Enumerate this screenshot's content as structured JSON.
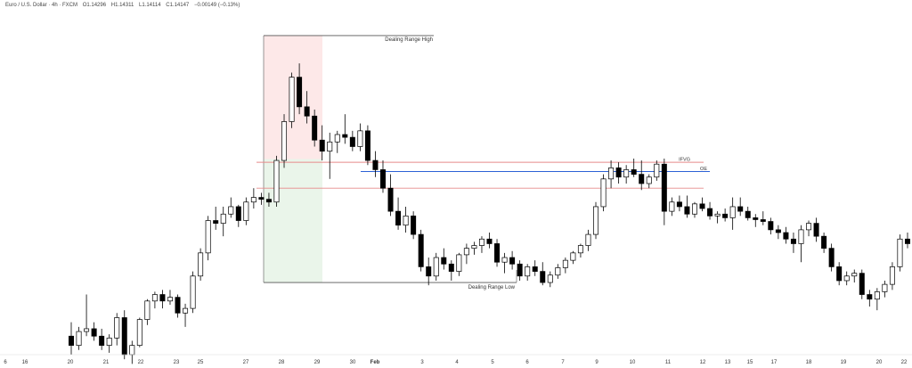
{
  "header": {
    "symbol": "Euro / U.S. Dollar · 4h · FXCM",
    "open": "O1.14296",
    "high": "H1.14311",
    "low": "L1.14114",
    "close": "C1.14147",
    "change": "−0.00149 (−0.13%)"
  },
  "colors": {
    "candle_up": "#ffffff",
    "candle_down": "#000000",
    "wick": "#000000",
    "premium_zone": "#fde8e8",
    "discount_zone": "#eaf5ea",
    "fvg_line": "#e88a8a",
    "ote_line": "#2d62d6"
  },
  "annotations": {
    "range_high": "Dealing Range High",
    "range_low": "Dealing Range Low",
    "fvg": "IFVG",
    "ote": "OE"
  },
  "chart_data": {
    "type": "candlestick",
    "x_tick_labels": [
      "6",
      "16",
      "20",
      "21",
      "22",
      "23",
      "24",
      "25",
      "27",
      "28",
      "29",
      "30",
      "Feb",
      "3",
      "4",
      "5",
      "6",
      "7",
      "9",
      "10",
      "11",
      "12",
      "13",
      "15",
      "16",
      "17",
      "18",
      "19",
      "20",
      "22"
    ],
    "bold_tick_labels": [
      "Feb"
    ],
    "ylim": [
      1.062,
      1.099
    ],
    "levels": {
      "dealing_range_high": 1.0965,
      "dealing_range_low": 1.0698,
      "ifvg_upper": 1.0828,
      "ote": 1.0818,
      "ifvg_lower": 1.08
    },
    "candles": [
      [
        1.064,
        1.0655,
        1.062,
        1.063
      ],
      [
        1.063,
        1.065,
        1.0625,
        1.0645
      ],
      [
        1.0645,
        1.0685,
        1.064,
        1.0648
      ],
      [
        1.0648,
        1.0655,
        1.0635,
        1.064
      ],
      [
        1.064,
        1.0648,
        1.0625,
        1.063
      ],
      [
        1.063,
        1.0642,
        1.0622,
        1.0638
      ],
      [
        1.0638,
        1.0665,
        1.063,
        1.066
      ],
      [
        1.066,
        1.0668,
        1.0615,
        1.062
      ],
      [
        1.062,
        1.0635,
        1.061,
        1.063
      ],
      [
        1.063,
        1.066,
        1.0628,
        1.0658
      ],
      [
        1.0658,
        1.068,
        1.0652,
        1.0678
      ],
      [
        1.0678,
        1.0688,
        1.067,
        1.0685
      ],
      [
        1.0685,
        1.069,
        1.067,
        1.0678
      ],
      [
        1.0678,
        1.069,
        1.0674,
        1.0682
      ],
      [
        1.0682,
        1.0685,
        1.066,
        1.0665
      ],
      [
        1.0665,
        1.0675,
        1.065,
        1.067
      ],
      [
        1.067,
        1.071,
        1.0665,
        1.0705
      ],
      [
        1.0705,
        1.0735,
        1.07,
        1.073
      ],
      [
        1.073,
        1.077,
        1.0722,
        1.0765
      ],
      [
        1.0765,
        1.078,
        1.0755,
        1.0762
      ],
      [
        1.0762,
        1.078,
        1.0748,
        1.0772
      ],
      [
        1.0772,
        1.079,
        1.0768,
        1.078
      ],
      [
        1.078,
        1.0782,
        1.0758,
        1.0765
      ],
      [
        1.0765,
        1.079,
        1.076,
        1.0785
      ],
      [
        1.0785,
        1.08,
        1.0778,
        1.079
      ],
      [
        1.079,
        1.0795,
        1.0782,
        1.0788
      ],
      [
        1.0788,
        1.0795,
        1.078,
        1.0785
      ],
      [
        1.0785,
        1.0835,
        1.078,
        1.083
      ],
      [
        1.083,
        1.088,
        1.0822,
        1.0872
      ],
      [
        1.0872,
        1.0925,
        1.0865,
        1.092
      ],
      [
        1.092,
        1.0935,
        1.088,
        1.0888
      ],
      [
        1.0888,
        1.0905,
        1.087,
        1.0878
      ],
      [
        1.0878,
        1.0885,
        1.0845,
        1.0852
      ],
      [
        1.0852,
        1.0868,
        1.083,
        1.084
      ],
      [
        1.084,
        1.086,
        1.081,
        1.085
      ],
      [
        1.085,
        1.0862,
        1.0838,
        1.0858
      ],
      [
        1.0858,
        1.088,
        1.0848,
        1.0855
      ],
      [
        1.0855,
        1.0862,
        1.084,
        1.0845
      ],
      [
        1.0845,
        1.087,
        1.084,
        1.0862
      ],
      [
        1.0862,
        1.0868,
        1.0825,
        1.083
      ],
      [
        1.083,
        1.084,
        1.0812,
        1.082
      ],
      [
        1.082,
        1.083,
        1.0795,
        1.08
      ],
      [
        1.08,
        1.0815,
        1.077,
        1.0775
      ],
      [
        1.0775,
        1.079,
        1.0755,
        1.076
      ],
      [
        1.076,
        1.078,
        1.0752,
        1.077
      ],
      [
        1.077,
        1.0775,
        1.0745,
        1.075
      ],
      [
        1.075,
        1.0755,
        1.071,
        1.0715
      ],
      [
        1.0715,
        1.0725,
        1.0695,
        1.0705
      ],
      [
        1.0705,
        1.073,
        1.07,
        1.0725
      ],
      [
        1.0725,
        1.0735,
        1.0712,
        1.0718
      ],
      [
        1.0718,
        1.0722,
        1.07,
        1.071
      ],
      [
        1.071,
        1.073,
        1.0705,
        1.0728
      ],
      [
        1.0728,
        1.074,
        1.0718,
        1.0735
      ],
      [
        1.0735,
        1.0742,
        1.0728,
        1.0738
      ],
      [
        1.0738,
        1.0748,
        1.073,
        1.0745
      ],
      [
        1.0745,
        1.0752,
        1.0735,
        1.074
      ],
      [
        1.074,
        1.0745,
        1.0715,
        1.072
      ],
      [
        1.072,
        1.073,
        1.0708,
        1.0725
      ],
      [
        1.0725,
        1.0732,
        1.0712,
        1.0718
      ],
      [
        1.0718,
        1.0722,
        1.07,
        1.0705
      ],
      [
        1.0705,
        1.0718,
        1.07,
        1.0715
      ],
      [
        1.0715,
        1.0722,
        1.0705,
        1.071
      ],
      [
        1.071,
        1.072,
        1.0695,
        1.0698
      ],
      [
        1.0698,
        1.071,
        1.0693,
        1.0706
      ],
      [
        1.0706,
        1.0718,
        1.0702,
        1.0714
      ],
      [
        1.0714,
        1.0725,
        1.0708,
        1.0722
      ],
      [
        1.0722,
        1.0732,
        1.0718,
        1.073
      ],
      [
        1.073,
        1.074,
        1.0725,
        1.0738
      ],
      [
        1.0738,
        1.0755,
        1.0732,
        1.075
      ],
      [
        1.075,
        1.0785,
        1.0745,
        1.078
      ],
      [
        1.078,
        1.0815,
        1.0775,
        1.081
      ],
      [
        1.081,
        1.083,
        1.08,
        1.0822
      ],
      [
        1.0822,
        1.0828,
        1.0805,
        1.0812
      ],
      [
        1.0812,
        1.0825,
        1.0805,
        1.082
      ],
      [
        1.082,
        1.0832,
        1.0812,
        1.0815
      ],
      [
        1.0815,
        1.083,
        1.0798,
        1.0805
      ],
      [
        1.0805,
        1.0815,
        1.08,
        1.0812
      ],
      [
        1.0812,
        1.083,
        1.0808,
        1.0826
      ],
      [
        1.0826,
        1.0832,
        1.076,
        1.0775
      ],
      [
        1.0775,
        1.079,
        1.077,
        1.0785
      ],
      [
        1.0785,
        1.0792,
        1.0775,
        1.078
      ],
      [
        1.078,
        1.0792,
        1.0768,
        1.0772
      ],
      [
        1.0772,
        1.0785,
        1.0768,
        1.0783
      ],
      [
        1.0783,
        1.079,
        1.0775,
        1.0778
      ],
      [
        1.0778,
        1.0785,
        1.0766,
        1.077
      ],
      [
        1.077,
        1.0775,
        1.0762,
        1.0772
      ],
      [
        1.0772,
        1.0778,
        1.0764,
        1.0768
      ],
      [
        1.0768,
        1.079,
        1.0755,
        1.078
      ],
      [
        1.078,
        1.079,
        1.077,
        1.0775
      ],
      [
        1.0775,
        1.078,
        1.0765,
        1.0768
      ],
      [
        1.0768,
        1.0772,
        1.0758,
        1.0766
      ],
      [
        1.0766,
        1.0775,
        1.076,
        1.0764
      ],
      [
        1.0764,
        1.0768,
        1.075,
        1.0755
      ],
      [
        1.0755,
        1.076,
        1.0745,
        1.0752
      ],
      [
        1.0752,
        1.0758,
        1.074,
        1.0745
      ],
      [
        1.0745,
        1.0752,
        1.073,
        1.074
      ],
      [
        1.074,
        1.076,
        1.072,
        1.0755
      ],
      [
        1.0755,
        1.0765,
        1.0748,
        1.0762
      ],
      [
        1.0762,
        1.0768,
        1.0742,
        1.0748
      ],
      [
        1.0748,
        1.0752,
        1.073,
        1.0735
      ],
      [
        1.0735,
        1.074,
        1.071,
        1.0715
      ],
      [
        1.0715,
        1.072,
        1.0695,
        1.07
      ],
      [
        1.07,
        1.071,
        1.0695,
        1.0705
      ],
      [
        1.0705,
        1.0712,
        1.0698,
        1.0708
      ],
      [
        1.0708,
        1.0712,
        1.068,
        1.0685
      ],
      [
        1.0685,
        1.069,
        1.0672,
        1.068
      ],
      [
        1.068,
        1.0692,
        1.0668,
        1.0688
      ],
      [
        1.0688,
        1.07,
        1.0682,
        1.0696
      ],
      [
        1.0696,
        1.072,
        1.069,
        1.0715
      ],
      [
        1.0715,
        1.075,
        1.071,
        1.0745
      ],
      [
        1.0745,
        1.0752,
        1.0735,
        1.074
      ]
    ]
  }
}
